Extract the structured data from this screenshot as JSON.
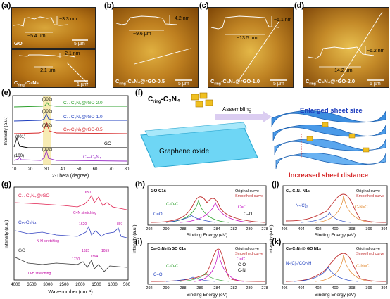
{
  "panels": {
    "a": {
      "label": "(a)",
      "top": {
        "height": "~3.3 nm",
        "width": "~5.4 µm",
        "scale": "5 µm",
        "caption": "GO"
      },
      "bottom": {
        "height": "~2.1 nm",
        "width": "~2.1 µm",
        "scale": "1 µm",
        "caption_main": "C",
        "caption_sub": "ring",
        "caption_rest": "-C₃N₄"
      }
    },
    "b": {
      "label": "(b)",
      "height": "~4.2 nm",
      "width": "~9.6 µm",
      "scale": "5 µm",
      "caption": "C",
      "caption_sub": "ring",
      "caption_rest": "-C₃N₄@rGO-0.5"
    },
    "c": {
      "label": "(c)",
      "height": "~5.1 nm",
      "width": "~13.5 µm",
      "scale": "5 µm",
      "caption": "C",
      "caption_sub": "ring",
      "caption_rest": "-C₃N₄@rGO-1.0"
    },
    "d": {
      "label": "(d)",
      "height": "~6.2 nm",
      "width": "~14.2 µm",
      "scale": "5 µm",
      "caption": "C",
      "caption_sub": "ring",
      "caption_rest": "-C₃N₄@rGO-2.0"
    },
    "e": {
      "label": "(e)",
      "xlabel": "2-Theta (degree)",
      "ylabel": "Intensity (a.u.)",
      "xticks": [
        "10",
        "20",
        "30",
        "40",
        "50",
        "60",
        "70",
        "80"
      ],
      "series": [
        {
          "name": "Cₘ-C₃N₄@rGO-2.0",
          "color": "#2ca02c",
          "peak": "(002)"
        },
        {
          "name": "Cₘ-C₃N₄@rGO-1.0",
          "color": "#1f3fbf",
          "peak": "(002)"
        },
        {
          "name": "Cₘ-C₃N₄@rGO-0.5",
          "color": "#d62728",
          "peak": "(002)"
        },
        {
          "name": "GO",
          "color": "#000000",
          "peak": "(001)"
        },
        {
          "name": "Cₘ-C₃N₄",
          "color": "#9b30c8",
          "peak": "(002)",
          "peak2": "(100)"
        }
      ]
    },
    "f": {
      "label": "(f)",
      "c_label": "C",
      "c_sub": "ring",
      "c_rest": "-C₃N₄",
      "go": "Graphene oxide",
      "assembling": "Assembling",
      "enlarged": "Enlarged sheet size",
      "increased": "Increased sheet distance"
    },
    "g": {
      "label": "(g)",
      "xlabel": "Wavenumber (cm⁻¹)",
      "ylabel": "Intensity (a.u.)",
      "xticks": [
        "4000",
        "3500",
        "3000",
        "2500",
        "2000",
        "1500",
        "1000",
        "500"
      ],
      "labels": {
        "s1": "Cₘ-C₃N₄@rGO",
        "s2": "Cₘ-C₃N₄",
        "s3": "GO",
        "a1": "1650",
        "a2": "C=N stretching",
        "a3": "1620",
        "a4": "807",
        "a5": "N-H stretching",
        "a6": "1625",
        "a7": "1364",
        "a8": "1059",
        "a9": "1730",
        "a10": "O-H stretching"
      }
    },
    "h": {
      "label": "(h)",
      "title": "GO C1s",
      "leg1": "Original curve",
      "leg2": "Smoothed curve",
      "p1": "C-O-C",
      "p2": "C=O",
      "p3": "C=C",
      "p4": "C–O",
      "xlabel": "Binding Energy (eV)",
      "xticks": [
        "292",
        "290",
        "288",
        "286",
        "284",
        "282",
        "280",
        "278"
      ]
    },
    "i": {
      "label": "(i)",
      "title": "Cₘ-C₃N₄@rGO C1s",
      "leg1": "Original curve",
      "leg2": "Smoothed curve",
      "p1": "C-O-C",
      "p2": "C=O",
      "p3": "C=C",
      "p4": "C-O",
      "p5": "C-N",
      "xlabel": "Binding Energy (eV)",
      "xticks": [
        "292",
        "290",
        "288",
        "286",
        "284",
        "282",
        "280",
        "278"
      ]
    },
    "j": {
      "label": "(j)",
      "title": "Cₘ-C₃N₄ N1s",
      "leg1": "Original curve",
      "leg2": "Smoothed curve",
      "p1": "N-(C)₃",
      "p2": "C-N=C",
      "xlabel": "Binding Energy (eV)",
      "xticks": [
        "406",
        "404",
        "402",
        "400",
        "398",
        "396",
        "394"
      ]
    },
    "k": {
      "label": "(k)",
      "title": "Cₘ-C₃N₄@rGO N1s",
      "leg1": "Original curve",
      "leg2": "Smoothed curve",
      "p1": "N-(C)₃/CONH",
      "p2": "C-N=C",
      "xlabel": "Binding Energy (eV)",
      "xticks": [
        "406",
        "404",
        "402",
        "400",
        "398",
        "396",
        "394"
      ]
    },
    "ylabel_xps": "Intensity (a.u.)"
  }
}
